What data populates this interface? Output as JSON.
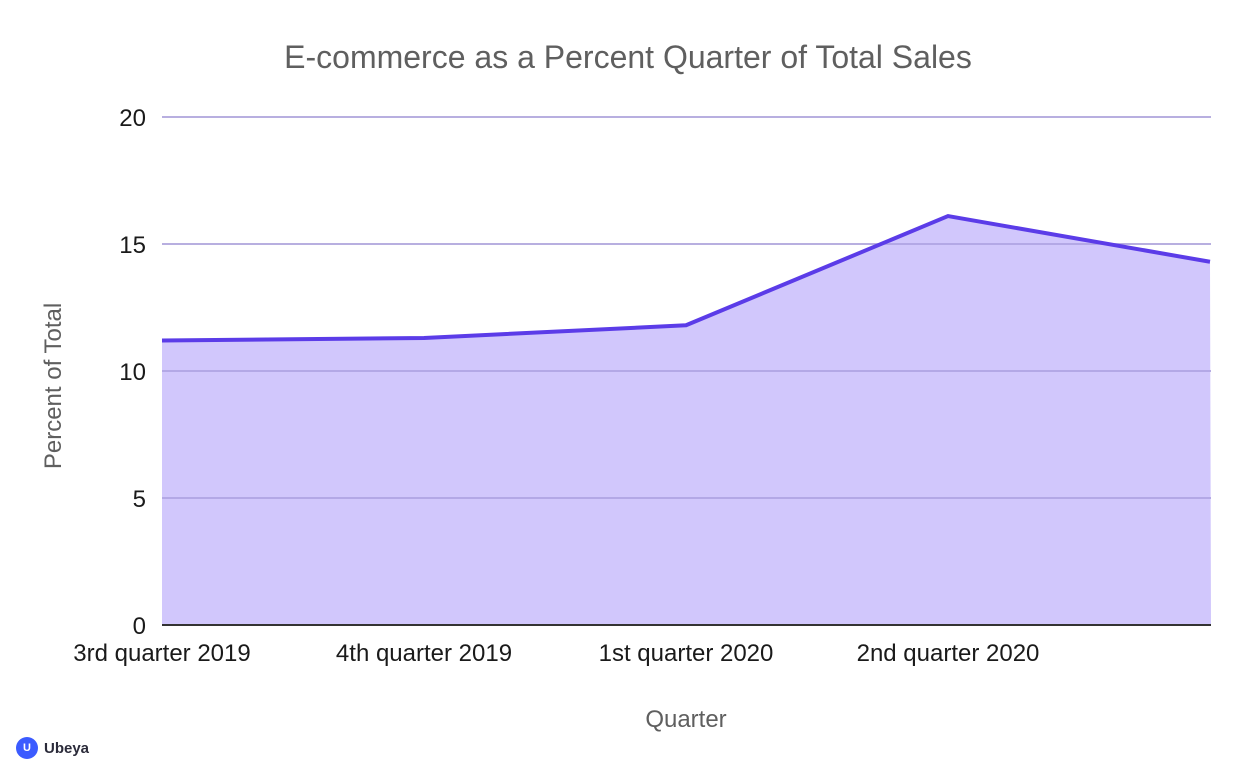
{
  "chart_data": {
    "type": "area",
    "title": "E-commerce as a Percent Quarter of Total Sales",
    "xlabel": "Quarter",
    "ylabel": "Percent of Total",
    "categories": [
      "3rd quarter 2019",
      "4th quarter 2019",
      "1st quarter 2020",
      "2nd quarter 2020",
      ""
    ],
    "series": [
      {
        "values": [
          11.2,
          11.3,
          11.8,
          16.1,
          14.3
        ]
      }
    ],
    "yticks": [
      "0",
      "5",
      "10",
      "15",
      "20"
    ],
    "ylim": [
      0,
      20
    ],
    "grid": true,
    "legend": "none",
    "colors": {
      "line": "#5b3ce8",
      "fill": "#cfc4fc",
      "grid": "#c8c8c8",
      "axis": "#333333"
    }
  },
  "brand": {
    "name": "Ubeya",
    "mark": "U",
    "color": "#3b5bff",
    "icon": "ubeya-logo-icon"
  }
}
